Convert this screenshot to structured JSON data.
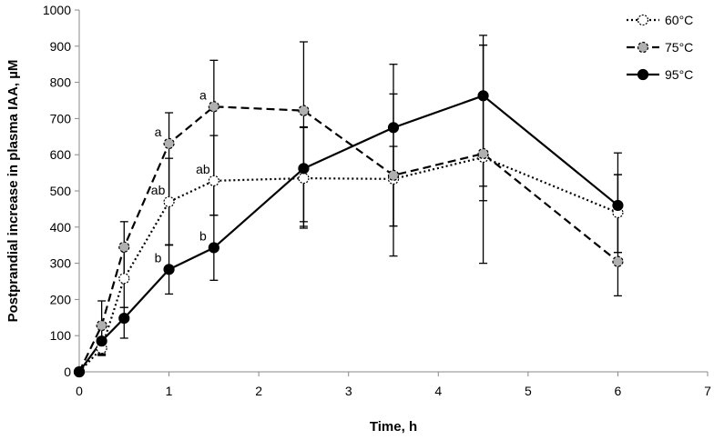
{
  "chart_data": {
    "type": "line",
    "xlabel": "Time, h",
    "ylabel": "Postprandial increase in plasma IAA, µM",
    "xlim": [
      0,
      7
    ],
    "ylim": [
      0,
      1000
    ],
    "x_ticks": [
      "0",
      "1",
      "2",
      "3",
      "4",
      "5",
      "6",
      "7"
    ],
    "y_ticks": [
      "0",
      "100",
      "200",
      "300",
      "400",
      "500",
      "600",
      "700",
      "800",
      "900",
      "1000"
    ],
    "grid": false,
    "legend_position": "top-right",
    "series": [
      {
        "name": "60°C",
        "line_style": "dotted",
        "marker_fill": "#ffffff",
        "x": [
          0,
          0.25,
          0.5,
          1,
          1.5,
          2.5,
          3.5,
          4.5,
          6
        ],
        "y": [
          0,
          65,
          258,
          470,
          528,
          535,
          533,
          593,
          440
        ],
        "err_low": [
          0,
          20,
          80,
          120,
          95,
          120,
          130,
          120,
          110
        ],
        "err_high": [
          0,
          20,
          80,
          120,
          125,
          140,
          235,
          310,
          105
        ]
      },
      {
        "name": "75°C",
        "line_style": "dashed",
        "marker_fill": "#b0b0b0",
        "x": [
          0,
          0.25,
          0.5,
          1,
          1.5,
          2.5,
          3.5,
          4.5,
          6
        ],
        "y": [
          0,
          128,
          345,
          631,
          733,
          722,
          543,
          603,
          305
        ],
        "err_low": [
          0,
          80,
          90,
          280,
          300,
          320,
          140,
          90,
          95
        ],
        "err_high": [
          0,
          68,
          70,
          85,
          128,
          190,
          80,
          300,
          240
        ]
      },
      {
        "name": "95°C",
        "line_style": "solid",
        "marker_fill": "#000000",
        "x": [
          0,
          0.25,
          0.5,
          1,
          1.5,
          2.5,
          3.5,
          4.5,
          6
        ],
        "y": [
          0,
          85,
          148,
          283,
          343,
          562,
          675,
          763,
          460
        ],
        "err_low": [
          0,
          35,
          55,
          68,
          90,
          165,
          355,
          463,
          130
        ],
        "err_high": [
          0,
          35,
          30,
          68,
          90,
          115,
          175,
          167,
          145
        ]
      }
    ],
    "annotations": [
      {
        "text": "a",
        "x": 1,
        "y": 631,
        "series": "75°C"
      },
      {
        "text": "a",
        "x": 1.5,
        "y": 733,
        "series": "75°C"
      },
      {
        "text": "ab",
        "x": 1,
        "y": 470,
        "series": "60°C"
      },
      {
        "text": "ab",
        "x": 1.5,
        "y": 528,
        "series": "60°C"
      },
      {
        "text": "b",
        "x": 1,
        "y": 283,
        "series": "95°C"
      },
      {
        "text": "b",
        "x": 1.5,
        "y": 343,
        "series": "95°C"
      }
    ]
  }
}
